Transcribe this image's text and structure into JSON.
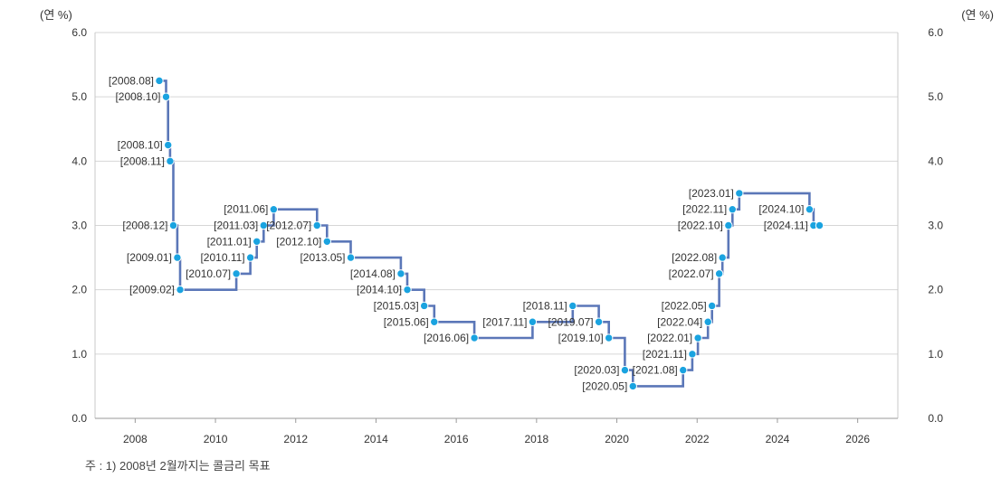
{
  "chart_data": {
    "type": "line",
    "step": true,
    "y_unit_left": "(연 %)",
    "y_unit_right": "(연 %)",
    "xlim": [
      2007,
      2027
    ],
    "ylim": [
      0,
      6
    ],
    "x_ticks": [
      2008,
      2010,
      2012,
      2014,
      2016,
      2018,
      2020,
      2022,
      2024,
      2026
    ],
    "y_ticks": [
      "0.0",
      "1.0",
      "2.0",
      "3.0",
      "4.0",
      "5.0",
      "6.0"
    ],
    "grid": "horizontal",
    "line_color": "#5b77b8",
    "marker_color": "#1aa3e0",
    "points": [
      {
        "label": "[2008.08]",
        "x": 2008.6,
        "y": 5.25
      },
      {
        "label": "[2008.10]",
        "x": 2008.77,
        "y": 5.0
      },
      {
        "label": "[2008.10]",
        "x": 2008.82,
        "y": 4.25
      },
      {
        "label": "[2008.11]",
        "x": 2008.87,
        "y": 4.0
      },
      {
        "label": "[2008.12]",
        "x": 2008.95,
        "y": 3.0
      },
      {
        "label": "[2009.01]",
        "x": 2009.05,
        "y": 2.5
      },
      {
        "label": "[2009.02]",
        "x": 2009.12,
        "y": 2.0
      },
      {
        "label": "[2010.07]",
        "x": 2010.52,
        "y": 2.25
      },
      {
        "label": "[2010.11]",
        "x": 2010.87,
        "y": 2.5
      },
      {
        "label": "[2011.01]",
        "x": 2011.03,
        "y": 2.75
      },
      {
        "label": "[2011.03]",
        "x": 2011.2,
        "y": 3.0
      },
      {
        "label": "[2011.06]",
        "x": 2011.45,
        "y": 3.25
      },
      {
        "label": "[2012.07]",
        "x": 2012.53,
        "y": 3.0
      },
      {
        "label": "[2012.10]",
        "x": 2012.78,
        "y": 2.75
      },
      {
        "label": "[2013.05]",
        "x": 2013.37,
        "y": 2.5
      },
      {
        "label": "[2014.08]",
        "x": 2014.62,
        "y": 2.25
      },
      {
        "label": "[2014.10]",
        "x": 2014.78,
        "y": 2.0
      },
      {
        "label": "[2015.03]",
        "x": 2015.2,
        "y": 1.75
      },
      {
        "label": "[2015.06]",
        "x": 2015.45,
        "y": 1.5
      },
      {
        "label": "[2016.06]",
        "x": 2016.45,
        "y": 1.25
      },
      {
        "label": "[2017.11]",
        "x": 2017.9,
        "y": 1.5
      },
      {
        "label": "[2018.11]",
        "x": 2018.9,
        "y": 1.75
      },
      {
        "label": "[2019.07]",
        "x": 2019.55,
        "y": 1.5
      },
      {
        "label": "[2019.10]",
        "x": 2019.8,
        "y": 1.25
      },
      {
        "label": "[2020.03]",
        "x": 2020.2,
        "y": 0.75
      },
      {
        "label": "[2020.05]",
        "x": 2020.4,
        "y": 0.5
      },
      {
        "label": "[2021.08]",
        "x": 2021.65,
        "y": 0.75
      },
      {
        "label": "[2021.11]",
        "x": 2021.88,
        "y": 1.0
      },
      {
        "label": "[2022.01]",
        "x": 2022.02,
        "y": 1.25
      },
      {
        "label": "[2022.04]",
        "x": 2022.27,
        "y": 1.5
      },
      {
        "label": "[2022.05]",
        "x": 2022.37,
        "y": 1.75
      },
      {
        "label": "[2022.07]",
        "x": 2022.55,
        "y": 2.25
      },
      {
        "label": "[2022.08]",
        "x": 2022.63,
        "y": 2.5
      },
      {
        "label": "[2022.10]",
        "x": 2022.78,
        "y": 3.0
      },
      {
        "label": "[2022.11]",
        "x": 2022.88,
        "y": 3.25
      },
      {
        "label": "[2023.01]",
        "x": 2023.05,
        "y": 3.5
      },
      {
        "label": "[2024.10]",
        "x": 2024.8,
        "y": 3.25
      },
      {
        "label": "[2024.11]",
        "x": 2024.9,
        "y": 3.0
      },
      {
        "label": "",
        "x": 2025.05,
        "y": 3.0
      }
    ]
  },
  "footnote": "주 : 1) 2008년 2월까지는 콜금리 목표"
}
